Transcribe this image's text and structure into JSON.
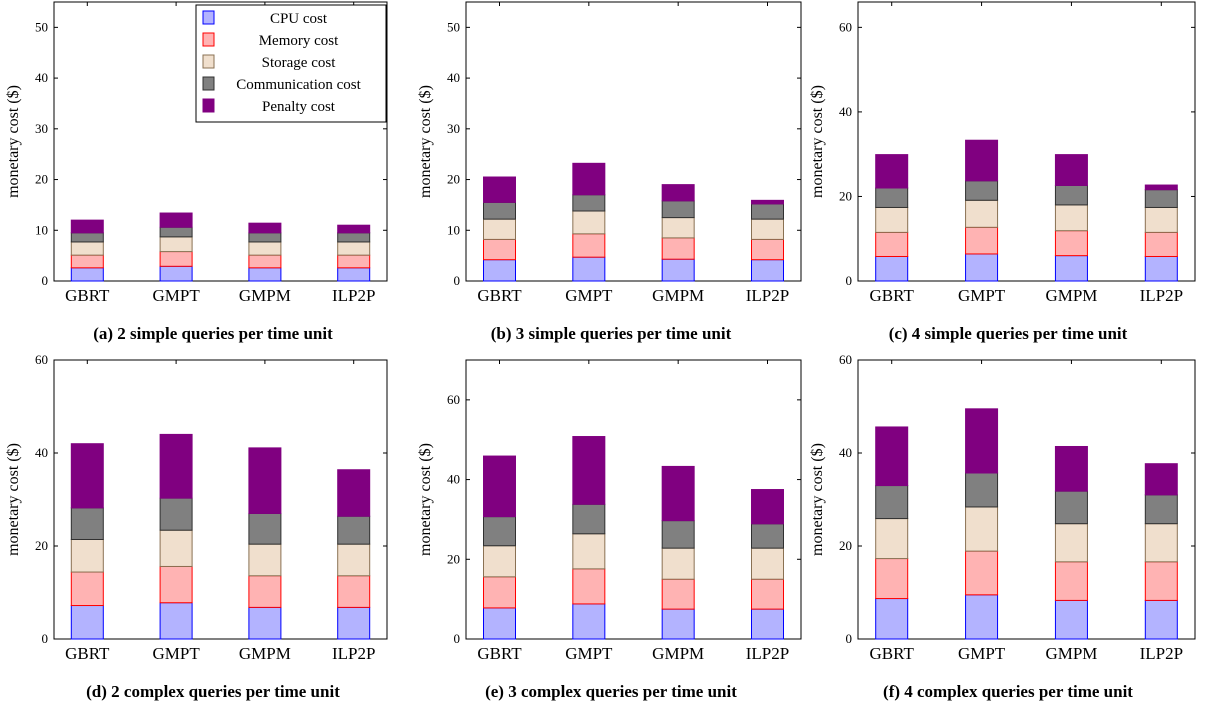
{
  "legend": {
    "entries": [
      {
        "label": "CPU cost",
        "fill": "#b3b3ff",
        "stroke": "#0000ff"
      },
      {
        "label": "Memory cost",
        "fill": "#ffb3b3",
        "stroke": "#ff0000"
      },
      {
        "label": "Storage cost",
        "fill": "#f0dfcd",
        "stroke": "#8a7153"
      },
      {
        "label": "Communication cost",
        "fill": "#808080",
        "stroke": "#303030"
      },
      {
        "label": "Penalty cost",
        "fill": "#800080",
        "stroke": "#800080"
      }
    ]
  },
  "chart_data": [
    {
      "type": "bar",
      "stacked": true,
      "caption": "(a) 2 simple queries per time unit",
      "ylabel": "monetary cost ($)",
      "ylim": [
        0,
        55
      ],
      "yticks": [
        0,
        10,
        20,
        30,
        40,
        50
      ],
      "categories": [
        "GBRT",
        "GMPT",
        "GMPM",
        "ILP2P"
      ],
      "series": [
        {
          "name": "CPU cost",
          "values": [
            2.6,
            2.9,
            2.6,
            2.6
          ]
        },
        {
          "name": "Memory cost",
          "values": [
            2.5,
            2.9,
            2.5,
            2.5
          ]
        },
        {
          "name": "Storage cost",
          "values": [
            2.6,
            2.9,
            2.6,
            2.6
          ]
        },
        {
          "name": "Communication cost",
          "values": [
            1.8,
            1.9,
            1.8,
            1.8
          ]
        },
        {
          "name": "Penalty cost",
          "values": [
            2.5,
            2.8,
            1.9,
            1.5
          ]
        }
      ]
    },
    {
      "type": "bar",
      "stacked": true,
      "caption": "(b) 3 simple queries per time unit",
      "ylabel": "monetary cost ($)",
      "ylim": [
        0,
        55
      ],
      "yticks": [
        0,
        10,
        20,
        30,
        40,
        50
      ],
      "categories": [
        "GBRT",
        "GMPT",
        "GMPM",
        "ILP2P"
      ],
      "series": [
        {
          "name": "CPU cost",
          "values": [
            4.2,
            4.7,
            4.3,
            4.2
          ]
        },
        {
          "name": "Memory cost",
          "values": [
            4.0,
            4.6,
            4.2,
            4.0
          ]
        },
        {
          "name": "Storage cost",
          "values": [
            4.0,
            4.5,
            4.0,
            4.0
          ]
        },
        {
          "name": "Communication cost",
          "values": [
            3.3,
            3.2,
            3.3,
            3.0
          ]
        },
        {
          "name": "Penalty cost",
          "values": [
            5.0,
            6.2,
            3.2,
            0.7
          ]
        }
      ]
    },
    {
      "type": "bar",
      "stacked": true,
      "caption": "(c) 4 simple queries per time unit",
      "ylabel": "monetary cost ($)",
      "ylim": [
        0,
        66
      ],
      "yticks": [
        0,
        20,
        40,
        60
      ],
      "categories": [
        "GBRT",
        "GMPT",
        "GMPM",
        "ILP2P"
      ],
      "series": [
        {
          "name": "CPU cost",
          "values": [
            5.8,
            6.4,
            6.0,
            5.8
          ]
        },
        {
          "name": "Memory cost",
          "values": [
            5.7,
            6.3,
            5.9,
            5.7
          ]
        },
        {
          "name": "Storage cost",
          "values": [
            5.9,
            6.4,
            6.1,
            5.9
          ]
        },
        {
          "name": "Communication cost",
          "values": [
            4.6,
            4.6,
            4.6,
            4.2
          ]
        },
        {
          "name": "Penalty cost",
          "values": [
            7.9,
            9.6,
            7.3,
            1.1
          ]
        }
      ]
    },
    {
      "type": "bar",
      "stacked": true,
      "caption": "(d) 2 complex queries per time unit",
      "ylabel": "monetary cost ($)",
      "ylim": [
        0,
        60
      ],
      "yticks": [
        0,
        20,
        40,
        60
      ],
      "categories": [
        "GBRT",
        "GMPT",
        "GMPM",
        "ILP2P"
      ],
      "series": [
        {
          "name": "CPU cost",
          "values": [
            7.2,
            7.8,
            6.8,
            6.8
          ]
        },
        {
          "name": "Memory cost",
          "values": [
            7.2,
            7.8,
            6.8,
            6.8
          ]
        },
        {
          "name": "Storage cost",
          "values": [
            7.0,
            7.8,
            6.8,
            6.8
          ]
        },
        {
          "name": "Communication cost",
          "values": [
            6.8,
            6.9,
            6.6,
            6.0
          ]
        },
        {
          "name": "Penalty cost",
          "values": [
            13.8,
            13.7,
            14.1,
            10.0
          ]
        }
      ]
    },
    {
      "type": "bar",
      "stacked": true,
      "caption": "(e) 3 complex queries per time unit",
      "ylabel": "monetary cost ($)",
      "ylim": [
        0,
        70
      ],
      "yticks": [
        0,
        20,
        40,
        60
      ],
      "categories": [
        "GBRT",
        "GMPT",
        "GMPM",
        "ILP2P"
      ],
      "series": [
        {
          "name": "CPU cost",
          "values": [
            7.8,
            8.8,
            7.5,
            7.5
          ]
        },
        {
          "name": "Memory cost",
          "values": [
            7.8,
            8.8,
            7.5,
            7.5
          ]
        },
        {
          "name": "Storage cost",
          "values": [
            7.8,
            8.8,
            7.8,
            7.8
          ]
        },
        {
          "name": "Communication cost",
          "values": [
            7.3,
            7.4,
            6.9,
            6.1
          ]
        },
        {
          "name": "Penalty cost",
          "values": [
            15.2,
            17.0,
            13.6,
            8.6
          ]
        }
      ]
    },
    {
      "type": "bar",
      "stacked": true,
      "caption": "(f) 4 complex queries per time unit",
      "ylabel": "monetary cost ($)",
      "ylim": [
        0,
        60
      ],
      "yticks": [
        0,
        20,
        40,
        60
      ],
      "categories": [
        "GBRT",
        "GMPT",
        "GMPM",
        "ILP2P"
      ],
      "series": [
        {
          "name": "CPU cost",
          "values": [
            8.7,
            9.5,
            8.3,
            8.3
          ]
        },
        {
          "name": "Memory cost",
          "values": [
            8.6,
            9.4,
            8.3,
            8.3
          ]
        },
        {
          "name": "Storage cost",
          "values": [
            8.6,
            9.5,
            8.2,
            8.2
          ]
        },
        {
          "name": "Communication cost",
          "values": [
            7.1,
            7.3,
            7.0,
            6.2
          ]
        },
        {
          "name": "Penalty cost",
          "values": [
            12.6,
            13.8,
            9.6,
            6.7
          ]
        }
      ]
    }
  ]
}
